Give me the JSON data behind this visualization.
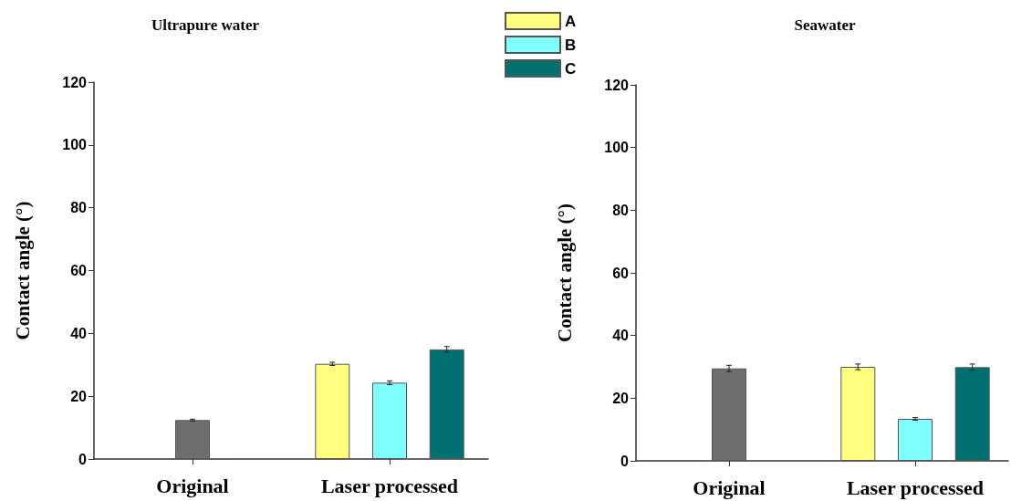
{
  "chart_data": [
    {
      "type": "bar",
      "title": "Ultrapure water",
      "ylabel": "Contact angle (°)",
      "categories": [
        "Original",
        "Laser processed"
      ],
      "ylim": [
        0,
        120
      ],
      "yticks": [
        0,
        20,
        40,
        60,
        80,
        100,
        120
      ],
      "grid": false,
      "legend": "top right",
      "series": [
        {
          "color": "#6e6e6e",
          "values": [
            12.4,
            null
          ],
          "errors": [
            0.3,
            null
          ]
        },
        {
          "name": "A",
          "color": "#ffff80",
          "values": [
            null,
            30.3
          ],
          "errors": [
            null,
            0.5
          ]
        },
        {
          "name": "B",
          "color": "#80ffff",
          "values": [
            null,
            24.3
          ],
          "errors": [
            null,
            0.6
          ]
        },
        {
          "name": "C",
          "color": "#007070",
          "values": [
            null,
            34.9
          ],
          "errors": [
            null,
            0.9
          ]
        }
      ]
    },
    {
      "type": "bar",
      "title": "Seawater",
      "ylabel": "Contact angle (°)",
      "categories": [
        "Original",
        "Laser processed"
      ],
      "ylim": [
        0,
        120
      ],
      "yticks": [
        0,
        20,
        40,
        60,
        80,
        100,
        120
      ],
      "grid": false,
      "legend": false,
      "series": [
        {
          "color": "#6e6e6e",
          "values": [
            29.5,
            null
          ],
          "errors": [
            1.0,
            null
          ]
        },
        {
          "color": "#ffff80",
          "values": [
            null,
            30.0
          ],
          "errors": [
            null,
            0.9
          ]
        },
        {
          "color": "#80ffff",
          "values": [
            null,
            13.4
          ],
          "errors": [
            null,
            0.4
          ]
        },
        {
          "color": "#007070",
          "values": [
            null,
            29.9
          ],
          "errors": [
            null,
            1.0
          ]
        }
      ]
    }
  ]
}
